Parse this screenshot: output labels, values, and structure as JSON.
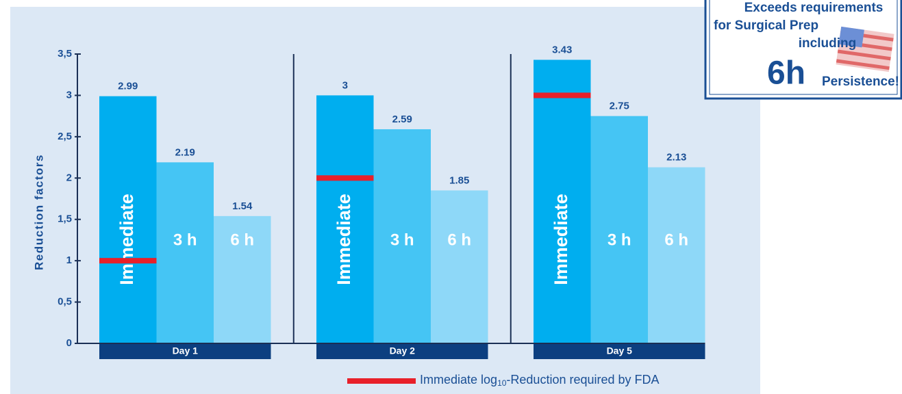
{
  "chart_data": {
    "type": "bar",
    "ylabel": "Reduction factors",
    "categories": [
      "Day 1",
      "Day 2",
      "Day 5"
    ],
    "series": [
      {
        "name": "Immediate",
        "color": "#00aeef",
        "values": [
          2.99,
          3,
          3.43
        ]
      },
      {
        "name": "3 h",
        "color": "#45c5f4",
        "values": [
          2.19,
          2.59,
          2.75
        ]
      },
      {
        "name": "6 h",
        "color": "#8ed8f8",
        "values": [
          1.54,
          1.85,
          2.13
        ]
      }
    ],
    "fda_requirement": {
      "label": [
        "Immediate log",
        "10",
        "-Reduction required by FDA"
      ],
      "color": "#e8202a",
      "values": [
        1,
        2,
        3
      ]
    },
    "ylim": [
      0,
      3.5
    ],
    "yticks": [
      0,
      {
        "value": 0.5,
        "label": "0,5"
      },
      1,
      {
        "value": 1.5,
        "label": "1,5"
      },
      2,
      {
        "value": 2.5,
        "label": "2,5"
      },
      3,
      {
        "value": 3.5,
        "label": "3,5"
      }
    ]
  },
  "badge": {
    "lines": [
      "Exceeds requirements",
      "for Surgical Prep",
      "including",
      "6h",
      "Persistence!"
    ]
  }
}
